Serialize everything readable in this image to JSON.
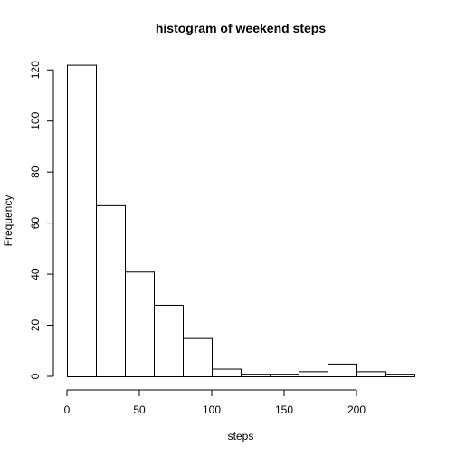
{
  "chart_data": {
    "type": "bar",
    "title": "histogram of weekend steps",
    "xlabel": "steps",
    "ylabel": "Frequency",
    "bin_edges": [
      0,
      20,
      40,
      60,
      80,
      100,
      120,
      140,
      160,
      180,
      200,
      220,
      240
    ],
    "values": [
      122,
      67,
      41,
      28,
      15,
      3,
      1,
      1,
      2,
      5,
      2,
      1
    ],
    "xlim": [
      0,
      240
    ],
    "ylim": [
      0,
      122
    ],
    "x_ticks": [
      0,
      50,
      100,
      150,
      200
    ],
    "x_tick_labels": [
      "0",
      "50",
      "100",
      "150",
      "200"
    ],
    "y_ticks": [
      0,
      20,
      40,
      60,
      80,
      100,
      120
    ],
    "y_tick_labels": [
      "0",
      "20",
      "40",
      "60",
      "80",
      "100",
      "120"
    ],
    "grid": false,
    "bar_fill": "#ffffff",
    "bar_stroke": "#000000"
  }
}
